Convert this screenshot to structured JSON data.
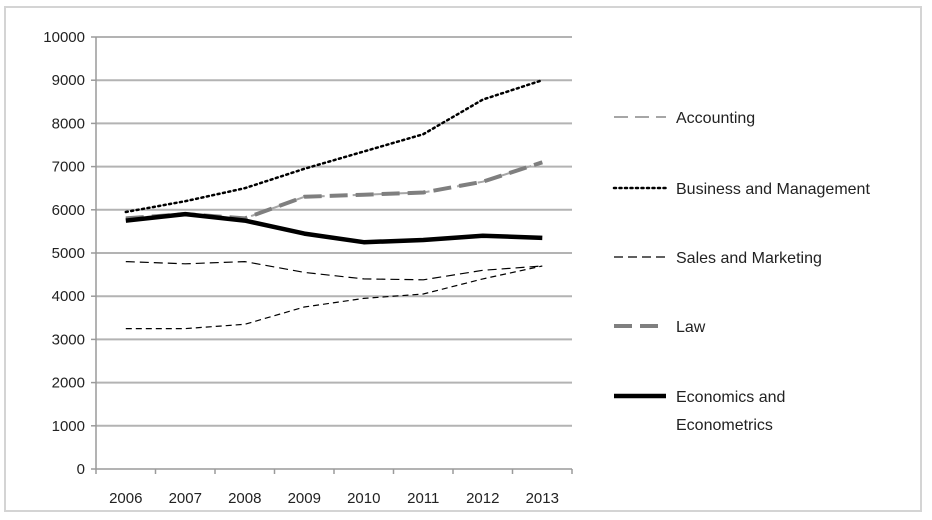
{
  "chart_data": {
    "type": "line",
    "title": "",
    "xlabel": "",
    "ylabel": "",
    "categories": [
      "2006",
      "2007",
      "2008",
      "2009",
      "2010",
      "2011",
      "2012",
      "2013"
    ],
    "ylim": [
      0,
      10000
    ],
    "yticks": [
      0,
      1000,
      2000,
      3000,
      4000,
      5000,
      6000,
      7000,
      8000,
      9000,
      10000
    ],
    "grid": "horizontal",
    "legend_position": "right",
    "series": [
      {
        "name": "Accounting",
        "style": "long-dash",
        "color": "#a6a6a6",
        "width": 2,
        "values": [
          5800,
          5900,
          5800,
          6300,
          6350,
          6400,
          6650,
          7100
        ]
      },
      {
        "name": "Business and Management",
        "style": "dotted",
        "color": "#000000",
        "width": 2.5,
        "values": [
          5950,
          6200,
          6500,
          6950,
          7350,
          7750,
          8550,
          9000
        ]
      },
      {
        "name": "Sales and Marketing",
        "style": "medium-dash",
        "color": "#000000",
        "width": 1.2,
        "values": [
          4800,
          4750,
          4800,
          4550,
          4400,
          4380,
          4600,
          4700
        ]
      },
      {
        "name": "",
        "style": "short-dash",
        "color": "#000000",
        "width": 1.2,
        "values": [
          3250,
          3250,
          3350,
          3750,
          3950,
          4050,
          4400,
          4700
        ]
      },
      {
        "name": "Law",
        "style": "long-dash",
        "color": "#7f7f7f",
        "width": 4,
        "values": [
          5800,
          5900,
          5800,
          6300,
          6350,
          6400,
          6650,
          7100
        ]
      },
      {
        "name": "Economics and Econometrics",
        "style": "solid",
        "color": "#000000",
        "width": 4.5,
        "values": [
          5750,
          5900,
          5750,
          5450,
          5250,
          5300,
          5400,
          5350
        ]
      }
    ],
    "legend": [
      {
        "label": "Accounting",
        "style": "long-dash",
        "color": "#a6a6a6",
        "width": 2
      },
      {
        "label": "Business and Management",
        "style": "dotted",
        "color": "#000000",
        "width": 2.5
      },
      {
        "label": "Sales and Marketing",
        "style": "medium-dash",
        "color": "#000000",
        "width": 1.2
      },
      {
        "label": "Law",
        "style": "long-dash",
        "color": "#7f7f7f",
        "width": 4
      },
      {
        "label": "Economics and\nEconometrics",
        "style": "solid",
        "color": "#000000",
        "width": 4.5
      }
    ]
  }
}
